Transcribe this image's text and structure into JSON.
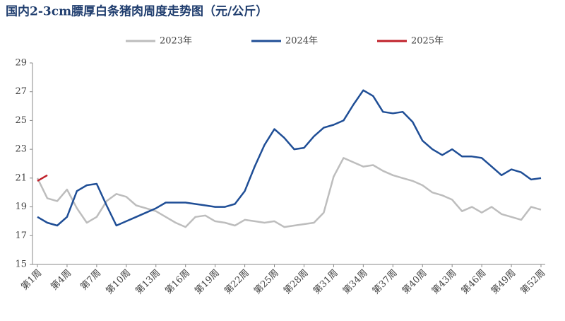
{
  "chart_data": {
    "type": "line",
    "title": "国内2-3cm膘厚白条猪肉周度走势图（元/公斤）",
    "categories": [
      "第1周",
      null,
      null,
      "第4周",
      null,
      null,
      "第7周",
      null,
      null,
      "第10周",
      null,
      null,
      "第13周",
      null,
      null,
      "第16周",
      null,
      null,
      "第19周",
      null,
      null,
      "第22周",
      null,
      null,
      "第25周",
      null,
      null,
      "第28周",
      null,
      null,
      "第31周",
      null,
      null,
      "第34周",
      null,
      null,
      "第37周",
      null,
      null,
      "第40周",
      null,
      null,
      "第43周",
      null,
      null,
      "第46周",
      null,
      null,
      "第49周",
      null,
      null,
      "第52周"
    ],
    "series": [
      {
        "name": "2023年",
        "color": "#bdbdbd",
        "values": [
          21.0,
          19.6,
          19.4,
          20.2,
          18.9,
          17.9,
          18.3,
          19.4,
          19.9,
          19.7,
          19.1,
          18.9,
          18.7,
          18.3,
          17.9,
          17.6,
          18.3,
          18.4,
          18.0,
          17.9,
          17.7,
          18.1,
          18.0,
          17.9,
          18.0,
          17.6,
          17.7,
          17.8,
          17.9,
          18.6,
          21.1,
          22.4,
          22.1,
          21.8,
          21.9,
          21.5,
          21.2,
          21.0,
          20.8,
          20.5,
          20.0,
          19.8,
          19.5,
          18.7,
          19.0,
          18.6,
          19.0,
          18.5,
          18.3,
          18.1,
          19.0,
          18.8
        ]
      },
      {
        "name": "2024年",
        "color": "#1f4e96",
        "values": [
          18.3,
          17.9,
          17.7,
          18.3,
          20.1,
          20.5,
          20.6,
          19.1,
          17.7,
          18.0,
          18.3,
          18.6,
          18.9,
          19.3,
          19.3,
          19.3,
          19.2,
          19.1,
          19.0,
          19.0,
          19.2,
          20.1,
          21.8,
          23.3,
          24.4,
          23.8,
          23.0,
          23.1,
          23.9,
          24.5,
          24.7,
          25.0,
          26.1,
          27.1,
          26.7,
          25.6,
          25.5,
          25.6,
          24.9,
          23.6,
          23.0,
          22.6,
          23.0,
          22.5,
          22.5,
          22.4,
          21.8,
          21.2,
          21.6,
          21.4,
          20.9,
          21.0
        ]
      },
      {
        "name": "2025年",
        "color": "#c0202a",
        "values": [
          20.8,
          21.2,
          null,
          null,
          null,
          null,
          null,
          null,
          null,
          null,
          null,
          null,
          null,
          null,
          null,
          null,
          null,
          null,
          null,
          null,
          null,
          null,
          null,
          null,
          null,
          null,
          null,
          null,
          null,
          null,
          null,
          null,
          null,
          null,
          null,
          null,
          null,
          null,
          null,
          null,
          null,
          null,
          null,
          null,
          null,
          null,
          null,
          null,
          null,
          null,
          null,
          null
        ]
      }
    ],
    "ylim": [
      15,
      29
    ],
    "yticks": [
      15,
      17,
      19,
      21,
      23,
      25,
      27,
      29
    ]
  }
}
